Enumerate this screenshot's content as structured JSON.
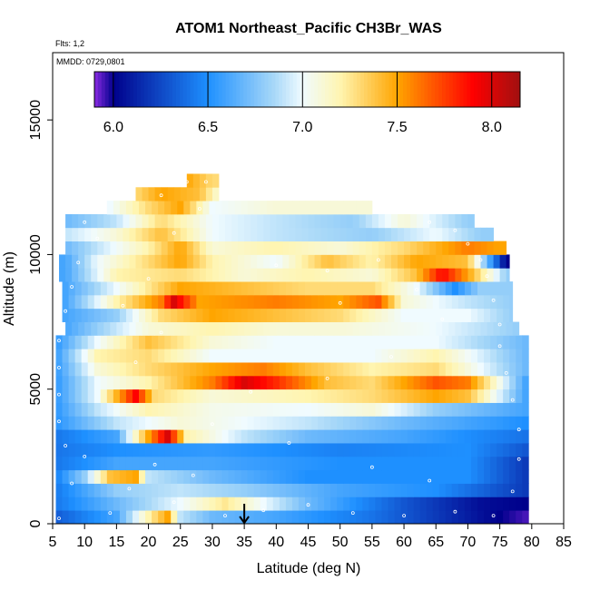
{
  "chart_data": {
    "type": "heatmap",
    "title": "ATOM1 Northeast_Pacific CH3Br_WAS",
    "flights_label": "Flts: 1,2",
    "dates_label": "MMDD: 0729,0801",
    "xlabel": "Latitude (deg N)",
    "ylabel": "Altitude (m)",
    "xlim": [
      5,
      85
    ],
    "ylim": [
      0,
      17500
    ],
    "x_ticks": [
      "5",
      "10",
      "15",
      "20",
      "25",
      "30",
      "35",
      "40",
      "45",
      "50",
      "55",
      "60",
      "65",
      "70",
      "75",
      "80",
      "85"
    ],
    "y_ticks": [
      "0",
      "5000",
      "10000",
      "15000"
    ],
    "colorbar": {
      "range": [
        5.9,
        8.15
      ],
      "tick_labels": [
        "6.0",
        "6.5",
        "7.0",
        "7.5",
        "8.0"
      ],
      "stops": [
        {
          "v": 5.9,
          "color": "#8a2be2"
        },
        {
          "v": 6.0,
          "color": "#00008b"
        },
        {
          "v": 6.5,
          "color": "#1e90ff"
        },
        {
          "v": 6.85,
          "color": "#a8d8f8"
        },
        {
          "v": 7.0,
          "color": "#f0fbff"
        },
        {
          "v": 7.2,
          "color": "#fff5b0"
        },
        {
          "v": 7.5,
          "color": "#ffa500"
        },
        {
          "v": 7.9,
          "color": "#ff0000"
        },
        {
          "v": 8.15,
          "color": "#a01010"
        }
      ]
    },
    "marker_latitude": 35,
    "altitude_bands": [
      {
        "alt": 250,
        "lat_min": 5.5,
        "lat_max": 79.5,
        "values": [
          [
            5,
            6.3
          ],
          [
            15,
            6.6
          ],
          [
            20,
            7.2
          ],
          [
            23,
            7.5
          ],
          [
            25,
            6.9
          ],
          [
            30,
            6.7
          ],
          [
            40,
            6.6
          ],
          [
            55,
            6.4
          ],
          [
            65,
            6.2
          ],
          [
            75,
            6.0
          ],
          [
            79,
            5.95
          ]
        ]
      },
      {
        "alt": 750,
        "lat_min": 5.5,
        "lat_max": 79.5,
        "values": [
          [
            5,
            6.4
          ],
          [
            15,
            6.7
          ],
          [
            25,
            7.0
          ],
          [
            32,
            7.25
          ],
          [
            38,
            7.0
          ],
          [
            45,
            6.7
          ],
          [
            60,
            6.3
          ],
          [
            72,
            6.05
          ],
          [
            79,
            6.0
          ]
        ]
      },
      {
        "alt": 1250,
        "lat_min": 5.5,
        "lat_max": 79.5,
        "values": [
          [
            5,
            6.4
          ],
          [
            10,
            6.6
          ],
          [
            15,
            6.8
          ],
          [
            25,
            6.9
          ],
          [
            35,
            6.8
          ],
          [
            50,
            6.6
          ],
          [
            65,
            6.5
          ],
          [
            79,
            6.2
          ]
        ]
      },
      {
        "alt": 1750,
        "lat_min": 5.5,
        "lat_max": 79.5,
        "values": [
          [
            5,
            6.4
          ],
          [
            10,
            6.8
          ],
          [
            14,
            7.4
          ],
          [
            18,
            7.5
          ],
          [
            20,
            6.9
          ],
          [
            30,
            6.7
          ],
          [
            45,
            6.5
          ],
          [
            70,
            6.5
          ],
          [
            79,
            6.2
          ]
        ]
      },
      {
        "alt": 2250,
        "lat_min": 5.5,
        "lat_max": 79.5,
        "values": [
          [
            5,
            6.4
          ],
          [
            15,
            6.6
          ],
          [
            30,
            6.6
          ],
          [
            50,
            6.5
          ],
          [
            70,
            6.5
          ],
          [
            79,
            6.2
          ]
        ]
      },
      {
        "alt": 2750,
        "lat_min": 5.5,
        "lat_max": 79.5,
        "values": [
          [
            5,
            6.4
          ],
          [
            15,
            6.5
          ],
          [
            30,
            6.55
          ],
          [
            50,
            6.45
          ],
          [
            70,
            6.5
          ],
          [
            79,
            6.3
          ]
        ]
      },
      {
        "alt": 3250,
        "lat_min": 5.5,
        "lat_max": 79.5,
        "values": [
          [
            5,
            6.4
          ],
          [
            15,
            6.6
          ],
          [
            20,
            7.5
          ],
          [
            23,
            8.0
          ],
          [
            26,
            7.2
          ],
          [
            35,
            6.9
          ],
          [
            45,
            6.7
          ],
          [
            60,
            6.6
          ],
          [
            79,
            6.4
          ]
        ]
      },
      {
        "alt": 3750,
        "lat_min": 5.5,
        "lat_max": 79.5,
        "values": [
          [
            5,
            6.5
          ],
          [
            15,
            6.9
          ],
          [
            25,
            7.1
          ],
          [
            35,
            7.0
          ],
          [
            45,
            6.9
          ],
          [
            60,
            6.7
          ],
          [
            79,
            6.5
          ]
        ]
      },
      {
        "alt": 4250,
        "lat_min": 5.5,
        "lat_max": 79.5,
        "values": [
          [
            5,
            6.5
          ],
          [
            12,
            6.9
          ],
          [
            20,
            7.2
          ],
          [
            30,
            7.05
          ],
          [
            45,
            7.0
          ],
          [
            55,
            7.1
          ],
          [
            65,
            6.8
          ],
          [
            79,
            6.6
          ]
        ]
      },
      {
        "alt": 4750,
        "lat_min": 5.5,
        "lat_max": 79.5,
        "values": [
          [
            5,
            6.5
          ],
          [
            12,
            7.0
          ],
          [
            18,
            7.9
          ],
          [
            21,
            7.3
          ],
          [
            30,
            7.1
          ],
          [
            45,
            7.2
          ],
          [
            55,
            7.3
          ],
          [
            65,
            7.5
          ],
          [
            70,
            7.4
          ],
          [
            79,
            6.6
          ]
        ]
      },
      {
        "alt": 5250,
        "lat_min": 5.5,
        "lat_max": 79.5,
        "values": [
          [
            5,
            6.5
          ],
          [
            12,
            7.0
          ],
          [
            20,
            7.2
          ],
          [
            30,
            7.6
          ],
          [
            35,
            8.0
          ],
          [
            40,
            7.8
          ],
          [
            48,
            7.4
          ],
          [
            55,
            7.3
          ],
          [
            65,
            7.7
          ],
          [
            70,
            7.6
          ],
          [
            79,
            6.6
          ]
        ]
      },
      {
        "alt": 5750,
        "lat_min": 5.5,
        "lat_max": 79.5,
        "values": [
          [
            5,
            6.5
          ],
          [
            12,
            7.1
          ],
          [
            20,
            7.3
          ],
          [
            30,
            7.5
          ],
          [
            38,
            7.6
          ],
          [
            45,
            7.4
          ],
          [
            55,
            7.2
          ],
          [
            65,
            7.3
          ],
          [
            79,
            6.7
          ]
        ]
      },
      {
        "alt": 6250,
        "lat_min": 5.5,
        "lat_max": 79.5,
        "values": [
          [
            5,
            6.5
          ],
          [
            12,
            7.2
          ],
          [
            20,
            7.3
          ],
          [
            30,
            7.0
          ],
          [
            45,
            7.0
          ],
          [
            55,
            7.0
          ],
          [
            65,
            7.2
          ],
          [
            79,
            6.7
          ]
        ]
      },
      {
        "alt": 6750,
        "lat_min": 5.5,
        "lat_max": 79.5,
        "values": [
          [
            5,
            6.5
          ],
          [
            12,
            7.0
          ],
          [
            20,
            7.4
          ],
          [
            30,
            7.1
          ],
          [
            40,
            7.0
          ],
          [
            50,
            7.0
          ],
          [
            65,
            7.0
          ],
          [
            79,
            6.7
          ]
        ]
      },
      {
        "alt": 7250,
        "lat_min": 7,
        "lat_max": 78,
        "values": [
          [
            7,
            6.6
          ],
          [
            12,
            6.8
          ],
          [
            20,
            7.1
          ],
          [
            30,
            7.2
          ],
          [
            40,
            7.1
          ],
          [
            50,
            7.1
          ],
          [
            65,
            7.0
          ],
          [
            78,
            6.8
          ]
        ]
      },
      {
        "alt": 7750,
        "lat_min": 6.5,
        "lat_max": 77,
        "values": [
          [
            7,
            6.6
          ],
          [
            15,
            6.8
          ],
          [
            22,
            7.3
          ],
          [
            30,
            7.5
          ],
          [
            40,
            7.4
          ],
          [
            50,
            7.3
          ],
          [
            60,
            7.0
          ],
          [
            70,
            7.0
          ],
          [
            77,
            6.8
          ]
        ]
      },
      {
        "alt": 8250,
        "lat_min": 6.5,
        "lat_max": 77,
        "values": [
          [
            7,
            6.6
          ],
          [
            15,
            7.2
          ],
          [
            22,
            7.6
          ],
          [
            24,
            8.0
          ],
          [
            28,
            7.5
          ],
          [
            40,
            7.6
          ],
          [
            50,
            7.5
          ],
          [
            56,
            7.7
          ],
          [
            60,
            7.1
          ],
          [
            70,
            6.9
          ],
          [
            77,
            6.8
          ]
        ]
      },
      {
        "alt": 8750,
        "lat_min": 6.5,
        "lat_max": 77,
        "values": [
          [
            7,
            6.6
          ],
          [
            15,
            7.0
          ],
          [
            25,
            7.5
          ],
          [
            35,
            7.4
          ],
          [
            45,
            7.3
          ],
          [
            55,
            7.3
          ],
          [
            62,
            7.0
          ],
          [
            68,
            6.5
          ],
          [
            72,
            6.8
          ],
          [
            77,
            6.8
          ]
        ]
      },
      {
        "alt": 9250,
        "lat_min": 6,
        "lat_max": 76.5,
        "values": [
          [
            7,
            6.6
          ],
          [
            15,
            7.2
          ],
          [
            25,
            7.3
          ],
          [
            35,
            7.1
          ],
          [
            45,
            7.2
          ],
          [
            55,
            7.1
          ],
          [
            62,
            7.4
          ],
          [
            66,
            7.9
          ],
          [
            70,
            7.5
          ],
          [
            76,
            6.8
          ]
        ]
      },
      {
        "alt": 9750,
        "lat_min": 6,
        "lat_max": 76.5,
        "values": [
          [
            7,
            6.6
          ],
          [
            12,
            7.0
          ],
          [
            20,
            7.3
          ],
          [
            25,
            7.5
          ],
          [
            30,
            7.2
          ],
          [
            40,
            7.0
          ],
          [
            48,
            7.4
          ],
          [
            55,
            7.2
          ],
          [
            62,
            7.5
          ],
          [
            70,
            7.4
          ],
          [
            76,
            6.0
          ]
        ]
      },
      {
        "alt": 10250,
        "lat_min": 7,
        "lat_max": 76,
        "values": [
          [
            7,
            6.7
          ],
          [
            12,
            6.9
          ],
          [
            20,
            7.2
          ],
          [
            25,
            7.5
          ],
          [
            30,
            7.1
          ],
          [
            40,
            7.2
          ],
          [
            50,
            7.1
          ],
          [
            60,
            7.3
          ],
          [
            70,
            7.6
          ],
          [
            75,
            7.5
          ]
        ]
      },
      {
        "alt": 10750,
        "lat_min": 7,
        "lat_max": 74,
        "values": [
          [
            7,
            6.9
          ],
          [
            15,
            7.1
          ],
          [
            22,
            7.4
          ],
          [
            30,
            7.0
          ],
          [
            40,
            6.9
          ],
          [
            55,
            6.8
          ],
          [
            65,
            7.0
          ],
          [
            72,
            6.8
          ]
        ]
      },
      {
        "alt": 11250,
        "lat_min": 7,
        "lat_max": 71,
        "values": [
          [
            7,
            6.7
          ],
          [
            15,
            6.9
          ],
          [
            22,
            7.3
          ],
          [
            30,
            7.0
          ],
          [
            40,
            6.9
          ],
          [
            52,
            6.8
          ],
          [
            60,
            7.1
          ],
          [
            70,
            6.8
          ]
        ]
      },
      {
        "alt": 11750,
        "lat_min": 13.5,
        "lat_max": 55,
        "values": [
          [
            14,
            7.0
          ],
          [
            20,
            7.3
          ],
          [
            25,
            7.5
          ],
          [
            30,
            7.0
          ],
          [
            40,
            7.1
          ],
          [
            55,
            7.1
          ]
        ]
      },
      {
        "alt": 12250,
        "lat_min": 18,
        "lat_max": 31,
        "values": [
          [
            18,
            7.3
          ],
          [
            22,
            7.5
          ],
          [
            28,
            7.4
          ],
          [
            31,
            7.1
          ]
        ]
      },
      {
        "alt": 12750,
        "lat_min": 26,
        "lat_max": 31,
        "values": [
          [
            26,
            7.5
          ],
          [
            30,
            7.3
          ]
        ]
      }
    ],
    "sample_points": [
      [
        6,
        200
      ],
      [
        8,
        1500
      ],
      [
        10,
        2500
      ],
      [
        14,
        400
      ],
      [
        17,
        1300
      ],
      [
        21,
        2200
      ],
      [
        24,
        800
      ],
      [
        27,
        1800
      ],
      [
        32,
        300
      ],
      [
        38,
        500
      ],
      [
        45,
        700
      ],
      [
        52,
        400
      ],
      [
        60,
        300
      ],
      [
        68,
        450
      ],
      [
        74,
        300
      ],
      [
        77,
        1200
      ],
      [
        78,
        2400
      ],
      [
        78,
        3500
      ],
      [
        77,
        4600
      ],
      [
        76,
        5600
      ],
      [
        75,
        6600
      ],
      [
        75,
        7400
      ],
      [
        74,
        8300
      ],
      [
        73,
        9200
      ],
      [
        72,
        9800
      ],
      [
        70,
        10400
      ],
      [
        68,
        10900
      ],
      [
        64,
        11200
      ],
      [
        10,
        11200
      ],
      [
        12,
        10600
      ],
      [
        9,
        9700
      ],
      [
        8,
        8800
      ],
      [
        7,
        7900
      ],
      [
        6,
        6800
      ],
      [
        6,
        5800
      ],
      [
        6,
        4800
      ],
      [
        6,
        3800
      ],
      [
        7,
        2900
      ],
      [
        22,
        12200
      ],
      [
        26,
        12700
      ],
      [
        29,
        12700
      ],
      [
        28,
        11700
      ],
      [
        24,
        10800
      ],
      [
        40,
        9600
      ],
      [
        48,
        9400
      ],
      [
        56,
        9800
      ],
      [
        62,
        8700
      ],
      [
        66,
        7600
      ],
      [
        58,
        6200
      ],
      [
        48,
        5400
      ],
      [
        36,
        4900
      ],
      [
        30,
        3700
      ],
      [
        42,
        3000
      ],
      [
        55,
        2100
      ],
      [
        64,
        1600
      ],
      [
        18,
        6000
      ],
      [
        22,
        7100
      ],
      [
        20,
        9100
      ],
      [
        16,
        8100
      ],
      [
        50,
        8200
      ]
    ]
  }
}
